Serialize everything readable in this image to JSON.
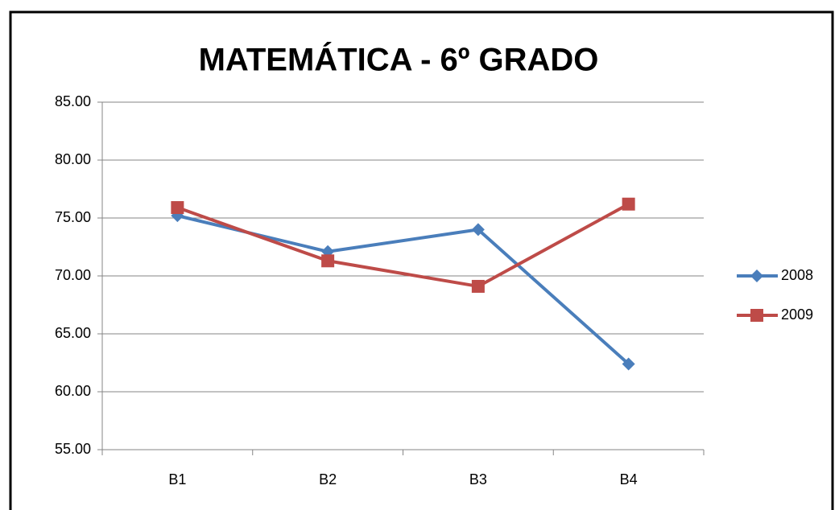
{
  "chart_data": {
    "type": "line",
    "title": "MATEMÁTICA - 6º GRADO",
    "categories": [
      "B1",
      "B2",
      "B3",
      "B4"
    ],
    "series": [
      {
        "name": "2008",
        "color": "#4a7ebb",
        "marker": "diamond",
        "values": [
          75.2,
          72.1,
          74.0,
          62.4
        ]
      },
      {
        "name": "2009",
        "color": "#be4b48",
        "marker": "square",
        "values": [
          75.9,
          71.3,
          69.1,
          76.2
        ]
      }
    ],
    "ylim": [
      55,
      85
    ],
    "yticks": [
      {
        "value": 55,
        "label": "55.00"
      },
      {
        "value": 60,
        "label": "60.00"
      },
      {
        "value": 65,
        "label": "65.00"
      },
      {
        "value": 70,
        "label": "70.00"
      },
      {
        "value": 75,
        "label": "75.00"
      },
      {
        "value": 80,
        "label": "80.00"
      },
      {
        "value": 85,
        "label": "85.00"
      }
    ],
    "grid": true,
    "legend": "right"
  }
}
